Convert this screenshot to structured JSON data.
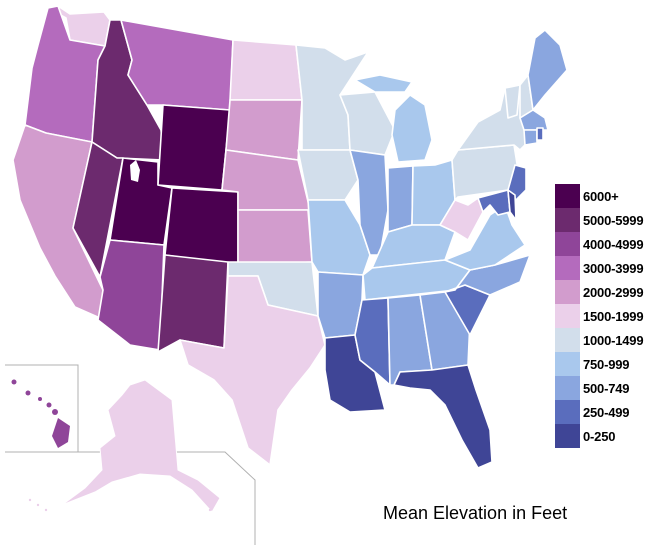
{
  "title": "Mean Elevation in Feet",
  "legend": [
    {
      "label": "6000+",
      "color": "#4b0050"
    },
    {
      "label": "5000-5999",
      "color": "#6c2a6e"
    },
    {
      "label": "4000-4999",
      "color": "#8f4599"
    },
    {
      "label": "3000-3999",
      "color": "#b46bbd"
    },
    {
      "label": "2000-2999",
      "color": "#d29ccd"
    },
    {
      "label": "1500-1999",
      "color": "#ebd0ea"
    },
    {
      "label": "1000-1499",
      "color": "#d2deeb"
    },
    {
      "label": "750-999",
      "color": "#a9c8ed"
    },
    {
      "label": "500-749",
      "color": "#8aa6df"
    },
    {
      "label": "250-499",
      "color": "#5a6dbd"
    },
    {
      "label": "0-250",
      "color": "#3f4596"
    }
  ],
  "states": {
    "WA": 5,
    "OR": 3,
    "CA": 4,
    "ID": 1,
    "NV": 1,
    "UT": 0,
    "AZ": 2,
    "MT": 3,
    "WY": 0,
    "CO": 0,
    "NM": 1,
    "ND": 5,
    "SD": 4,
    "NE": 4,
    "KS": 4,
    "OK": 6,
    "TX": 5,
    "MN": 6,
    "IA": 6,
    "MO": 7,
    "AR": 8,
    "LA": 10,
    "WI": 6,
    "IL": 8,
    "MI": 7,
    "IN": 8,
    "OH": 7,
    "KY": 7,
    "TN": 7,
    "MS": 9,
    "AL": 8,
    "GA": 8,
    "FL": 10,
    "SC": 9,
    "NC": 8,
    "VA": 7,
    "WV": 5,
    "PA": 6,
    "NY": 6,
    "VT": 6,
    "NH": 6,
    "ME": 8,
    "MA": 8,
    "CT": 8,
    "RI": 9,
    "NJ": 9,
    "DE": 10,
    "MD": 9,
    "AK": 5,
    "HI": 2
  }
}
